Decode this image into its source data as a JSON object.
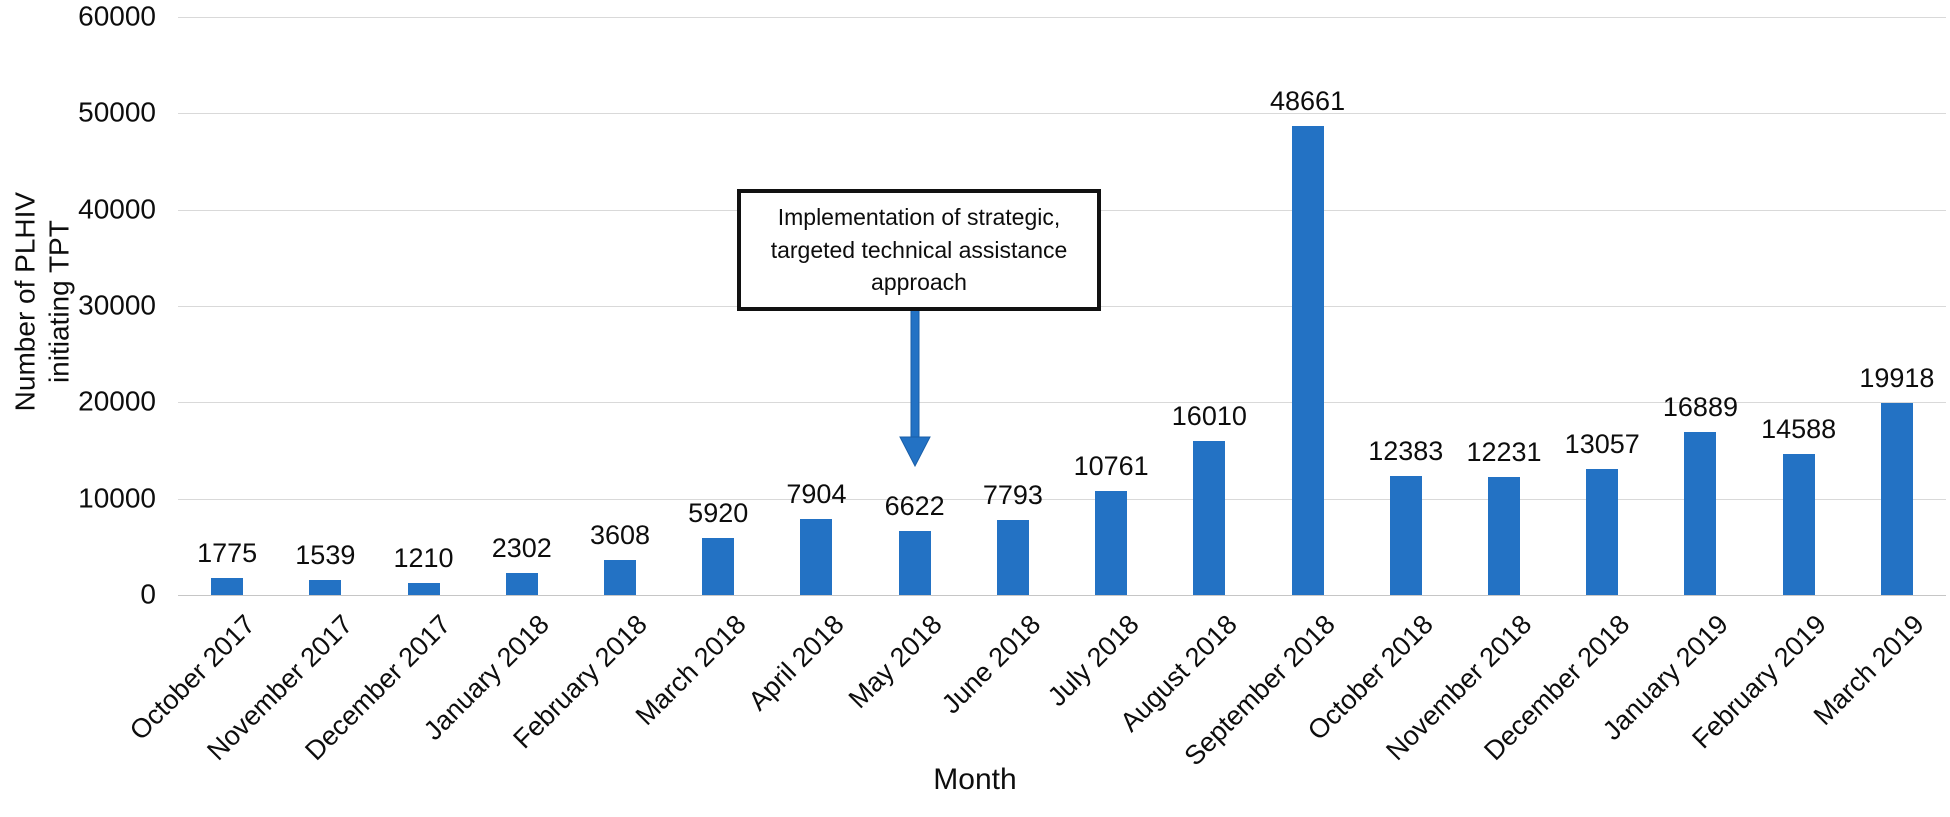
{
  "chart_data": {
    "type": "bar",
    "title": "",
    "xlabel": "Month",
    "ylabel": "Number of PLHIV initiating TPT",
    "categories": [
      "October 2017",
      "November 2017",
      "December 2017",
      "January 2018",
      "February 2018",
      "March 2018",
      "April 2018",
      "May 2018",
      "June 2018",
      "July 2018",
      "August 2018",
      "September 2018",
      "October 2018",
      "November 2018",
      "December 2018",
      "January 2019",
      "February 2019",
      "March 2019"
    ],
    "values": [
      1775,
      1539,
      1210,
      2302,
      3608,
      5920,
      7904,
      6622,
      7793,
      10761,
      16010,
      48661,
      12383,
      12231,
      13057,
      16889,
      14588,
      19918
    ],
    "ylim": [
      0,
      60000
    ],
    "yticks": [
      0,
      10000,
      20000,
      30000,
      40000,
      50000,
      60000
    ],
    "grid": "horizontal",
    "legend": false,
    "bar_color": "#2372c4",
    "gridline_color": "#d9d9d9",
    "annotation": {
      "text": "Implementation of strategic, targeted technical assistance approach",
      "arrow_target_category": "May 2018"
    }
  }
}
